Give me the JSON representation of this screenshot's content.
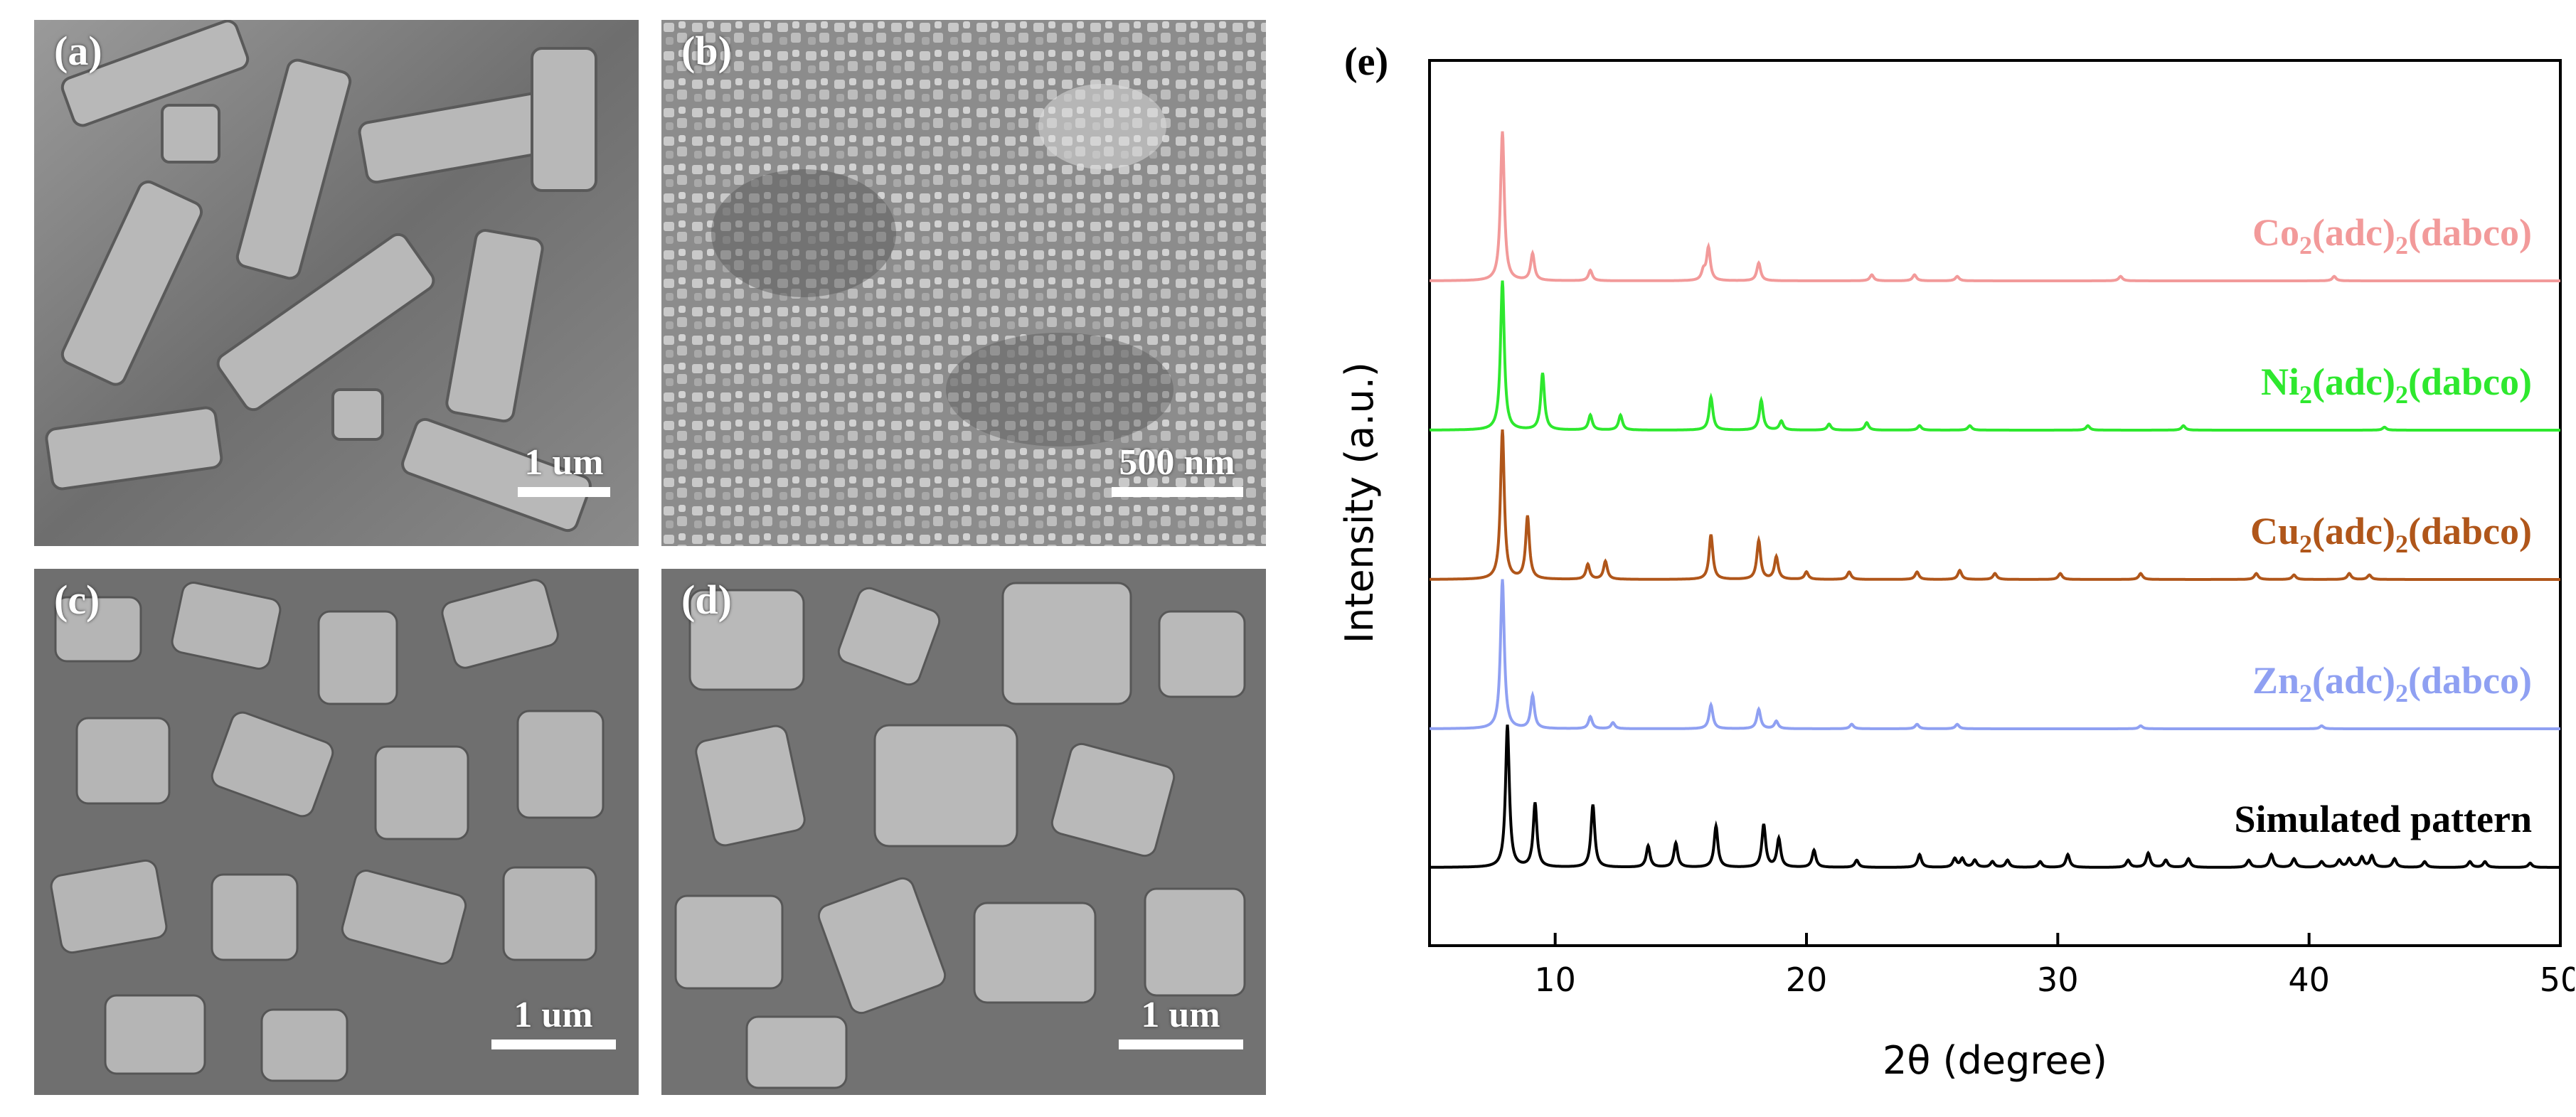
{
  "panels": [
    {
      "label": "(a)",
      "scale_text": "1 um"
    },
    {
      "label": "(b)",
      "scale_text": "500 nm"
    },
    {
      "label": "(c)",
      "scale_text": "1 um"
    },
    {
      "label": "(d)",
      "scale_text": "1 um"
    }
  ],
  "chart_data": {
    "type": "line",
    "panel_label": "(e)",
    "xlabel": "2θ (degree)",
    "ylabel": "Intensity (a.u.)",
    "xlim": [
      5,
      50
    ],
    "xticks": [
      10,
      20,
      30,
      40,
      50
    ],
    "grid": false,
    "series": [
      {
        "name_parts": [
          "Co",
          "2",
          "(adc)",
          "2",
          "(dabco)"
        ],
        "color": "#f29a9a",
        "peaks": [
          [
            7.9,
            1.0
          ],
          [
            9.1,
            0.18
          ],
          [
            11.4,
            0.07
          ],
          [
            15.9,
            0.06
          ],
          [
            16.1,
            0.22
          ],
          [
            18.1,
            0.12
          ],
          [
            22.6,
            0.04
          ],
          [
            24.3,
            0.04
          ],
          [
            26.0,
            0.03
          ],
          [
            32.5,
            0.03
          ],
          [
            41.0,
            0.03
          ]
        ]
      },
      {
        "name_parts": [
          "Ni",
          "2",
          "(adc)",
          "2",
          "(dabco)"
        ],
        "color": "#2ee82e",
        "peaks": [
          [
            7.9,
            1.0
          ],
          [
            9.5,
            0.38
          ],
          [
            11.4,
            0.1
          ],
          [
            12.6,
            0.1
          ],
          [
            16.2,
            0.22
          ],
          [
            18.2,
            0.2
          ],
          [
            19.0,
            0.06
          ],
          [
            20.9,
            0.04
          ],
          [
            22.4,
            0.05
          ],
          [
            24.5,
            0.03
          ],
          [
            26.5,
            0.03
          ],
          [
            31.2,
            0.03
          ],
          [
            35.0,
            0.03
          ],
          [
            43.0,
            0.02
          ]
        ]
      },
      {
        "name_parts": [
          "Cu",
          "2",
          "(adc)",
          "2",
          "(dabco)"
        ],
        "color": "#b0561a",
        "peaks": [
          [
            7.9,
            1.0
          ],
          [
            8.9,
            0.42
          ],
          [
            11.3,
            0.1
          ],
          [
            12.0,
            0.12
          ],
          [
            16.2,
            0.3
          ],
          [
            18.1,
            0.26
          ],
          [
            18.8,
            0.15
          ],
          [
            20.0,
            0.05
          ],
          [
            21.7,
            0.05
          ],
          [
            24.4,
            0.05
          ],
          [
            26.1,
            0.06
          ],
          [
            27.5,
            0.04
          ],
          [
            30.1,
            0.04
          ],
          [
            33.3,
            0.04
          ],
          [
            37.9,
            0.04
          ],
          [
            39.4,
            0.03
          ],
          [
            41.6,
            0.04
          ],
          [
            42.4,
            0.03
          ]
        ]
      },
      {
        "name_parts": [
          "Zn",
          "2",
          "(adc)",
          "2",
          "(dabco)"
        ],
        "color": "#8fa0f2",
        "peaks": [
          [
            7.9,
            1.0
          ],
          [
            9.1,
            0.22
          ],
          [
            11.4,
            0.08
          ],
          [
            12.3,
            0.04
          ],
          [
            16.2,
            0.16
          ],
          [
            18.1,
            0.13
          ],
          [
            18.8,
            0.05
          ],
          [
            21.8,
            0.03
          ],
          [
            24.4,
            0.03
          ],
          [
            26.0,
            0.03
          ],
          [
            33.3,
            0.02
          ],
          [
            40.5,
            0.02
          ]
        ]
      },
      {
        "name_parts": [
          "Simulated pattern"
        ],
        "color": "#000000",
        "peaks": [
          [
            8.1,
            1.0
          ],
          [
            9.2,
            0.45
          ],
          [
            11.5,
            0.44
          ],
          [
            13.7,
            0.15
          ],
          [
            14.8,
            0.17
          ],
          [
            16.4,
            0.29
          ],
          [
            18.3,
            0.3
          ],
          [
            18.9,
            0.2
          ],
          [
            20.3,
            0.12
          ],
          [
            22.0,
            0.05
          ],
          [
            24.5,
            0.09
          ],
          [
            25.9,
            0.06
          ],
          [
            26.2,
            0.06
          ],
          [
            26.7,
            0.05
          ],
          [
            27.4,
            0.04
          ],
          [
            28.0,
            0.05
          ],
          [
            29.3,
            0.04
          ],
          [
            30.4,
            0.09
          ],
          [
            32.8,
            0.05
          ],
          [
            33.6,
            0.1
          ],
          [
            34.3,
            0.05
          ],
          [
            35.2,
            0.06
          ],
          [
            37.6,
            0.05
          ],
          [
            38.5,
            0.09
          ],
          [
            39.4,
            0.06
          ],
          [
            40.5,
            0.04
          ],
          [
            41.2,
            0.05
          ],
          [
            41.6,
            0.06
          ],
          [
            42.1,
            0.07
          ],
          [
            42.5,
            0.08
          ],
          [
            43.4,
            0.06
          ],
          [
            44.6,
            0.04
          ],
          [
            46.4,
            0.04
          ],
          [
            47.0,
            0.04
          ],
          [
            48.8,
            0.03
          ]
        ]
      }
    ]
  }
}
